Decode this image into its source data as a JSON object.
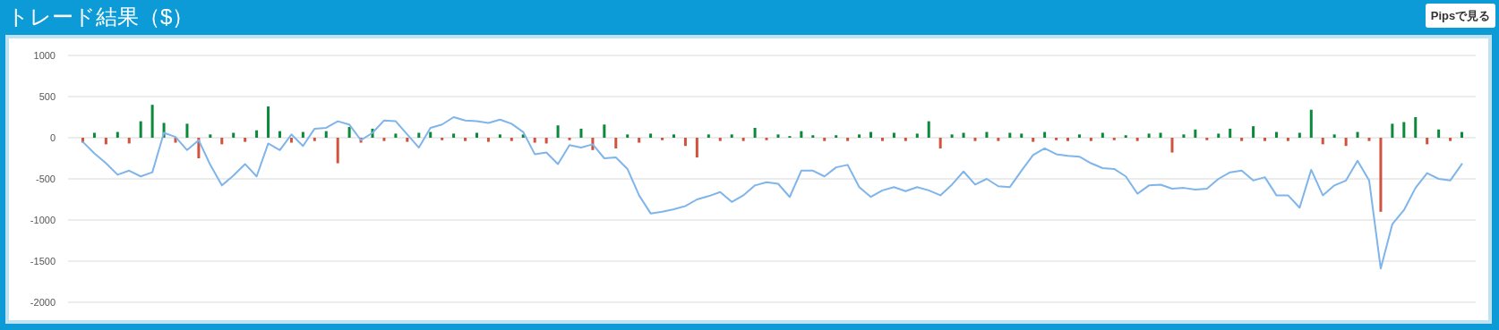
{
  "chart_data": {
    "type": "bar",
    "title": "トレード結果（$）",
    "annotations": [
      "Pipsで見る"
    ],
    "stacked": true,
    "grid": "y",
    "legend": false,
    "tick_labels": "y",
    "categories": [
      null,
      null,
      null,
      null,
      null,
      null,
      null,
      null,
      null,
      null,
      null,
      null,
      null,
      null,
      null,
      null,
      null,
      null,
      null,
      null,
      null,
      null,
      null,
      null,
      null,
      null,
      null,
      null,
      null,
      null,
      null,
      null,
      null,
      null,
      null,
      null,
      null,
      null,
      null,
      null,
      null,
      null,
      null,
      null,
      null,
      null,
      null,
      null,
      null,
      null,
      null,
      null,
      null,
      null,
      null,
      null,
      null,
      null,
      null,
      null,
      null,
      null,
      null,
      null,
      null,
      null,
      null,
      null,
      null,
      null,
      null,
      null,
      null,
      null,
      null,
      null,
      null,
      null,
      null,
      null,
      null,
      null,
      null,
      null,
      null,
      null,
      null,
      null,
      null,
      null,
      null,
      null,
      null,
      null,
      null,
      null,
      null,
      null,
      null,
      null,
      null,
      null,
      null,
      null,
      null,
      null,
      null,
      null,
      null,
      null,
      null,
      null,
      null,
      null,
      null,
      null,
      null,
      null,
      null,
      null
    ],
    "ylim": [
      -2000,
      1000
    ],
    "yticks": [
      1000,
      500,
      0,
      -500,
      -1000,
      -1500,
      -2000
    ],
    "series": [
      {
        "color": "#0b8a3b",
        "values": [
          null,
          60,
          null,
          70,
          null,
          200,
          400,
          180,
          null,
          170,
          null,
          40,
          null,
          60,
          null,
          90,
          380,
          80,
          null,
          70,
          null,
          80,
          null,
          130,
          null,
          110,
          null,
          50,
          null,
          60,
          70,
          null,
          50,
          null,
          60,
          null,
          40,
          null,
          40,
          null,
          null,
          150,
          null,
          110,
          null,
          160,
          null,
          40,
          null,
          50,
          null,
          40,
          null,
          null,
          40,
          null,
          40,
          null,
          120,
          null,
          40,
          20,
          80,
          30,
          null,
          30,
          null,
          40,
          70,
          null,
          60,
          null,
          50,
          200,
          null,
          40,
          60,
          null,
          70,
          null,
          60,
          50,
          null,
          70,
          null,
          null,
          40,
          null,
          60,
          null,
          30,
          null,
          50,
          60,
          null,
          40,
          100,
          null,
          50,
          110,
          null,
          140,
          null,
          70,
          null,
          60,
          340,
          null,
          40,
          null,
          70,
          null,
          null,
          170,
          190,
          250,
          null,
          100,
          null,
          70
        ]
      },
      {
        "color": "#d0533d",
        "values": [
          -60,
          null,
          -80,
          null,
          -70,
          null,
          null,
          null,
          -60,
          null,
          -250,
          null,
          -80,
          null,
          -50,
          null,
          null,
          null,
          -60,
          null,
          -40,
          null,
          -310,
          null,
          -60,
          null,
          -40,
          null,
          -50,
          null,
          null,
          -30,
          null,
          -40,
          null,
          -50,
          null,
          -40,
          null,
          -60,
          -70,
          null,
          -30,
          null,
          -150,
          null,
          -130,
          null,
          -60,
          null,
          -30,
          null,
          -100,
          -240,
          null,
          -40,
          null,
          -40,
          null,
          -30,
          null,
          null,
          null,
          null,
          -40,
          null,
          -40,
          null,
          null,
          -40,
          null,
          -40,
          null,
          null,
          -130,
          null,
          null,
          -40,
          null,
          -40,
          null,
          null,
          -50,
          null,
          -30,
          -40,
          null,
          -40,
          null,
          -30,
          null,
          -40,
          null,
          null,
          -180,
          null,
          null,
          -30,
          null,
          null,
          -40,
          null,
          -40,
          null,
          -40,
          null,
          null,
          -80,
          null,
          -100,
          null,
          -40,
          -900,
          null,
          null,
          null,
          -80,
          null,
          -40,
          null
        ]
      },
      {
        "type": "line",
        "color": "#7fb5ea",
        "values": [
          -50,
          -190,
          -310,
          -450,
          -400,
          -470,
          -420,
          60,
          10,
          -150,
          -30,
          -330,
          -580,
          -460,
          -320,
          -470,
          -70,
          -150,
          40,
          -100,
          110,
          120,
          200,
          160,
          -30,
          60,
          210,
          200,
          40,
          -120,
          120,
          160,
          250,
          210,
          200,
          180,
          220,
          170,
          70,
          -200,
          -180,
          -320,
          -90,
          -120,
          -80,
          -250,
          -240,
          -380,
          -700,
          -920,
          -900,
          -870,
          -830,
          -750,
          -710,
          -660,
          -780,
          -700,
          -580,
          -540,
          -560,
          -720,
          -400,
          -400,
          -470,
          -360,
          -330,
          -600,
          -720,
          -640,
          -600,
          -650,
          -600,
          -640,
          -700,
          -570,
          -410,
          -570,
          -500,
          -590,
          -600,
          -400,
          -210,
          -130,
          -200,
          -220,
          -230,
          -310,
          -370,
          -380,
          -470,
          -680,
          -580,
          -570,
          -620,
          -610,
          -630,
          -620,
          -500,
          -420,
          -400,
          -520,
          -480,
          -700,
          -700,
          -850,
          -390,
          -700,
          -580,
          -520,
          -280,
          -520,
          -1590,
          -1050,
          -880,
          -610,
          -430,
          -500,
          -520,
          -320
        ]
      }
    ]
  }
}
